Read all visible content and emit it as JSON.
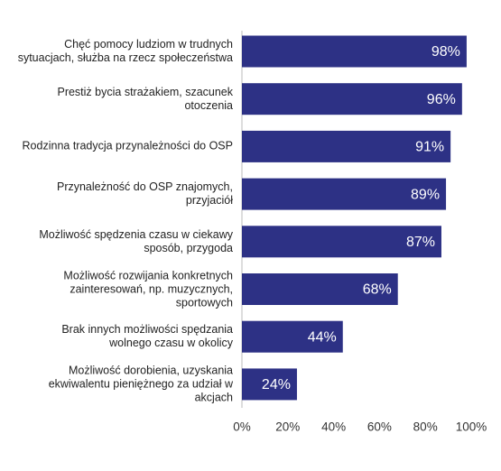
{
  "chart_data": {
    "type": "barh",
    "categories": [
      "Chęć pomocy ludziom w trudnych\nsytuacjach, służba na rzecz społeczeństwa",
      "Prestiż bycia strażakiem, szacunek\notoczenia",
      "Rodzinna tradycja przynależności do OSP",
      "Przynależność do OSP znajomych,\nprzyjaciół",
      "Możliwość spędzenia czasu w ciekawy\nsposób, przygoda",
      "Możliwość rozwijania konkretnych\nzainteresowań, np. muzycznych,\nsportowych",
      "Brak innych możliwości spędzania\nwolnego czasu w okolicy",
      "Możliwość dorobienia, uzyskania\nekwiwalentu pieniężnego za udział w\nakcjach"
    ],
    "values": [
      98,
      96,
      91,
      89,
      87,
      68,
      44,
      24
    ],
    "value_labels": [
      "98%",
      "96%",
      "91%",
      "89%",
      "87%",
      "68%",
      "44%",
      "24%"
    ],
    "color": "#2d3185",
    "xlim": [
      0,
      100
    ],
    "xticks": [
      {
        "value": 0,
        "label": "0%"
      },
      {
        "value": 20,
        "label": "20%"
      },
      {
        "value": 40,
        "label": "40%"
      },
      {
        "value": 60,
        "label": "60%"
      },
      {
        "value": 80,
        "label": "80%"
      },
      {
        "value": 100,
        "label": "100%"
      }
    ]
  }
}
